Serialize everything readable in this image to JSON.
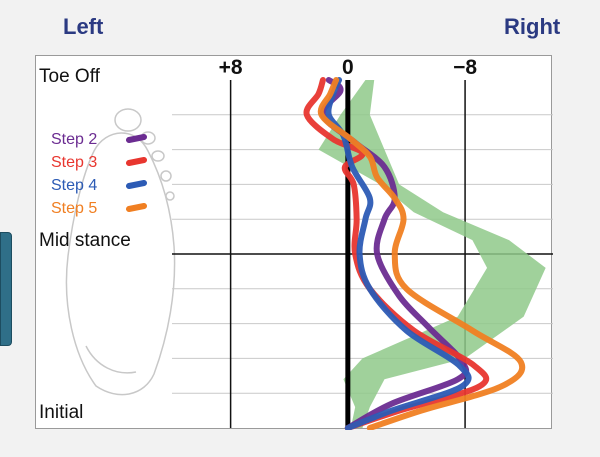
{
  "header": {
    "left_label": "Left",
    "right_label": "Right"
  },
  "chart_data": {
    "type": "line",
    "x_axis": {
      "ticks": [
        "+8",
        "0",
        "−8"
      ],
      "xlim": [
        12,
        -14
      ]
    },
    "y_axis": {
      "labels": {
        "top": "Toe Off",
        "middle": "Mid stance",
        "bottom": "Initial"
      },
      "ylim": [
        0,
        10
      ],
      "gridlines": [
        1,
        2,
        3,
        4,
        5,
        6,
        7,
        8,
        9
      ]
    },
    "normal_band": {
      "color": "#8fc98a",
      "left": [
        [
          -1.2,
          0
        ],
        [
          0.5,
          1
        ],
        [
          2,
          2
        ],
        [
          -2.2,
          3
        ],
        [
          -4.5,
          3.8
        ],
        [
          -8.5,
          4.6
        ],
        [
          -9.5,
          5.4
        ],
        [
          -7.5,
          6.8
        ],
        [
          -1,
          8
        ],
        [
          0.3,
          8.6
        ],
        [
          -0.5,
          9.4
        ],
        [
          -0.2,
          10
        ]
      ],
      "right": [
        [
          -1.8,
          0
        ],
        [
          -1.5,
          1
        ],
        [
          -2.5,
          2
        ],
        [
          -3.5,
          3
        ],
        [
          -6.5,
          3.8
        ],
        [
          -11,
          4.6
        ],
        [
          -13.5,
          5.4
        ],
        [
          -12,
          6.8
        ],
        [
          -8,
          8
        ],
        [
          -2.5,
          8.6
        ],
        [
          -1.5,
          9.4
        ],
        [
          -1,
          10
        ]
      ]
    },
    "series": [
      {
        "name": "Step 2",
        "color": "#6b2c91",
        "points": [
          [
            0,
            10
          ],
          [
            -3,
            9.3
          ],
          [
            -7.5,
            8.6
          ],
          [
            -7.8,
            8.1
          ],
          [
            -5.5,
            7.1
          ],
          [
            -3.5,
            6.2
          ],
          [
            -2,
            5
          ],
          [
            -2.5,
            4
          ],
          [
            -3.2,
            3.4
          ],
          [
            -2.5,
            2.5
          ],
          [
            -0.5,
            1.8
          ],
          [
            1.7,
            1
          ],
          [
            0.5,
            0.3
          ],
          [
            1.3,
            0
          ]
        ]
      },
      {
        "name": "Step 3",
        "color": "#e8362f",
        "points": [
          [
            0,
            10
          ],
          [
            -3.5,
            9.5
          ],
          [
            -9,
            8.8
          ],
          [
            -8.6,
            8.2
          ],
          [
            -4.5,
            7.2
          ],
          [
            -1.5,
            6
          ],
          [
            -0.5,
            5
          ],
          [
            -0.6,
            4
          ],
          [
            -0.4,
            3
          ],
          [
            0.2,
            2.5
          ],
          [
            -1,
            2.1
          ],
          [
            1,
            1.7
          ],
          [
            2.8,
            1
          ],
          [
            2,
            0.4
          ],
          [
            1.7,
            0
          ]
        ]
      },
      {
        "name": "Step 4",
        "color": "#2c5bb5",
        "points": [
          [
            0,
            10
          ],
          [
            -3,
            9.5
          ],
          [
            -7.8,
            8.8
          ],
          [
            -7.6,
            8.2
          ],
          [
            -4,
            7.2
          ],
          [
            -1.5,
            6
          ],
          [
            -0.8,
            5
          ],
          [
            -1.2,
            4
          ],
          [
            -1.5,
            3.4
          ],
          [
            -0.3,
            2.5
          ],
          [
            0.3,
            1.6
          ],
          [
            1.3,
            1
          ],
          [
            1,
            0.4
          ],
          [
            0.6,
            0
          ]
        ]
      },
      {
        "name": "Step 5",
        "color": "#f07f22",
        "points": [
          [
            -1.5,
            10
          ],
          [
            -5,
            9.5
          ],
          [
            -10.5,
            8.8
          ],
          [
            -11.8,
            8.1
          ],
          [
            -8.5,
            7.2
          ],
          [
            -4,
            6
          ],
          [
            -3.2,
            5
          ],
          [
            -3.8,
            4
          ],
          [
            -3.2,
            3.4
          ],
          [
            -2,
            2.8
          ],
          [
            -1.5,
            2.2
          ],
          [
            -0.2,
            1.7
          ],
          [
            1.8,
            1
          ],
          [
            1.2,
            0.4
          ],
          [
            0.8,
            0
          ]
        ]
      }
    ]
  }
}
